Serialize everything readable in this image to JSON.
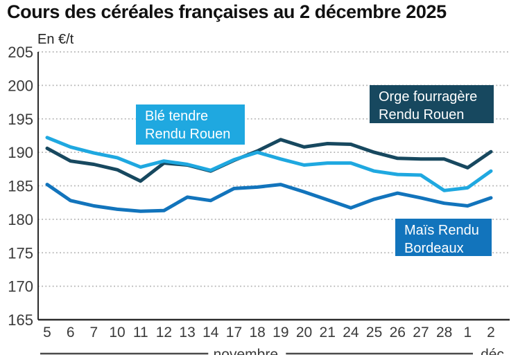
{
  "header": {
    "title": "Cours des céréales françaises au 2 décembre 2025"
  },
  "chart_data": {
    "type": "line",
    "unit_label": "En €/t",
    "ylim": [
      165,
      205
    ],
    "ytick_step": 5,
    "ytick_labels": [
      "165",
      "170",
      "175",
      "180",
      "185",
      "190",
      "195",
      "200",
      "205"
    ],
    "grid": "horizontal-dotted",
    "x_tick_labels": [
      "5",
      "6",
      "7",
      "10",
      "11",
      "12",
      "13",
      "14",
      "17",
      "18",
      "19",
      "20",
      "21",
      "24",
      "25",
      "26",
      "27",
      "28",
      "1",
      "2"
    ],
    "x_month_groups": [
      {
        "label": "novembre",
        "from_index": 0,
        "to_index": 17
      },
      {
        "label": "déc",
        "from_index": 18,
        "to_index": 19
      }
    ],
    "series": [
      {
        "id": "ble-tendre",
        "name": "Blé tendre Rendu Rouen",
        "label_lines": [
          "Blé tendre",
          "Rendu Rouen"
        ],
        "color": "#1fa8e0",
        "values": [
          192.2,
          190.8,
          189.9,
          189.2,
          187.8,
          188.7,
          188.2,
          187.3,
          188.9,
          190.0,
          189.0,
          188.1,
          188.4,
          188.4,
          187.2,
          186.7,
          186.6,
          184.3,
          184.7,
          187.2
        ]
      },
      {
        "id": "orge-fourragere",
        "name": "Orge fourragère Rendu Rouen",
        "label_lines": [
          "Orge fourragère",
          "Rendu Rouen"
        ],
        "color": "#17485f",
        "values": [
          190.6,
          188.7,
          188.2,
          187.4,
          185.7,
          188.4,
          188.1,
          187.2,
          188.8,
          190.2,
          191.9,
          190.8,
          191.3,
          191.2,
          190.0,
          189.1,
          189.0,
          189.0,
          187.7,
          190.1
        ]
      },
      {
        "id": "mais",
        "name": "Maïs Rendu Bordeaux",
        "label_lines": [
          "Maïs Rendu",
          "Bordeaux"
        ],
        "color": "#1274bc",
        "values": [
          185.2,
          182.8,
          182.0,
          181.5,
          181.2,
          181.3,
          183.3,
          182.8,
          184.6,
          184.8,
          185.2,
          184.1,
          182.9,
          181.7,
          183.0,
          183.9,
          183.2,
          182.4,
          182.0,
          183.2
        ]
      }
    ],
    "draw_order": [
      1,
      2,
      0
    ],
    "legend_position": "inline-boxes"
  }
}
